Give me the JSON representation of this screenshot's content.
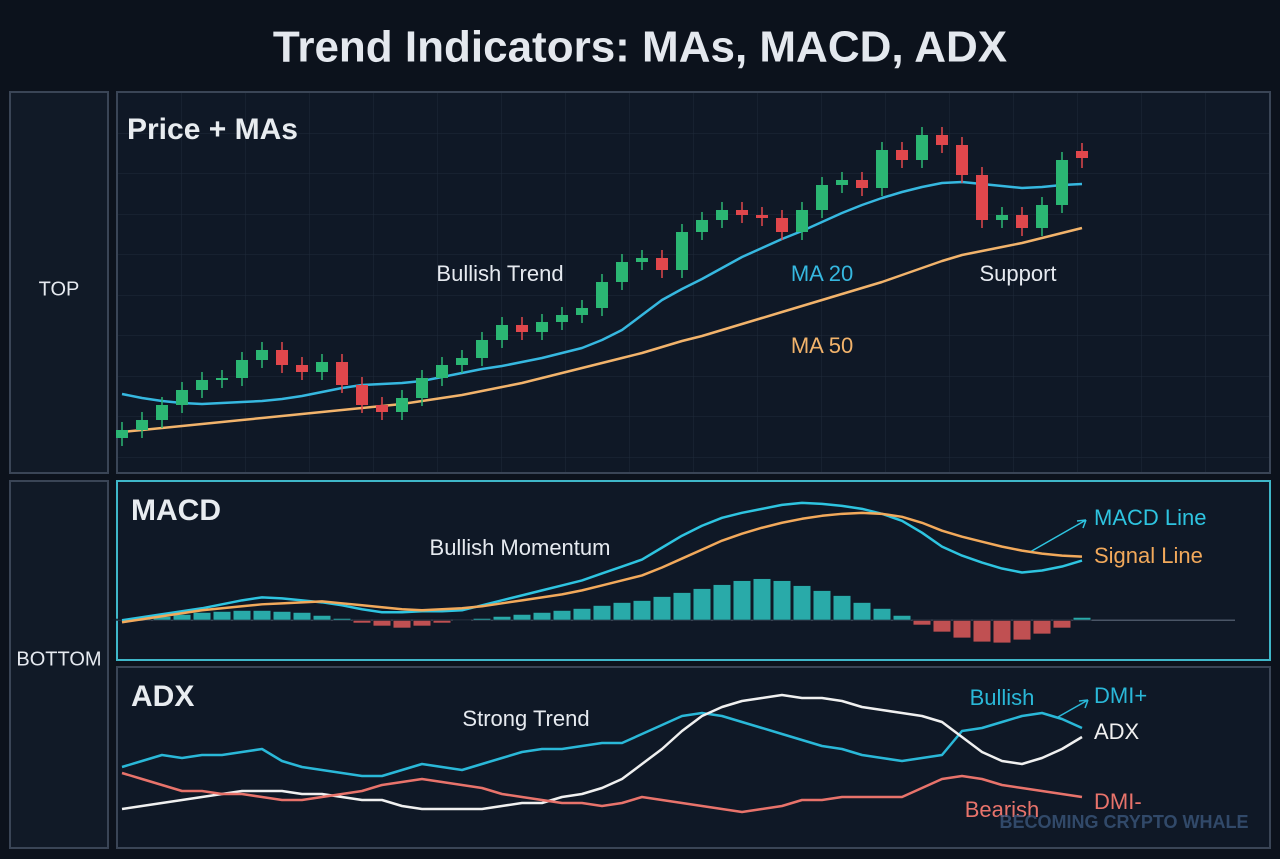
{
  "title": "Trend Indicators: MAs, MACD, ADX",
  "labels": {
    "top": "TOP",
    "bottom": "BOTTOM"
  },
  "watermark": "BECOMING CRYPTO WHALE",
  "chart_data": [
    {
      "type": "candlestick",
      "title": "Price + MAs",
      "ylim": [
        0,
        381
      ],
      "grid": true,
      "up_color": "#2bb673",
      "down_color": "#e0474c",
      "open": [
        35,
        43,
        53,
        68,
        83,
        93,
        95,
        113,
        123,
        108,
        101,
        111,
        88,
        68,
        61,
        75,
        95,
        108,
        115,
        133,
        148,
        141,
        151,
        158,
        165,
        191,
        211,
        215,
        203,
        241,
        253,
        263,
        258,
        255,
        241,
        263,
        288,
        293,
        285,
        323,
        313,
        338,
        328,
        298,
        253,
        258,
        245,
        268,
        322
      ],
      "close": [
        43,
        53,
        68,
        83,
        93,
        95,
        113,
        123,
        108,
        101,
        111,
        88,
        68,
        61,
        75,
        95,
        108,
        115,
        133,
        148,
        141,
        151,
        158,
        165,
        191,
        211,
        215,
        203,
        241,
        253,
        263,
        258,
        255,
        241,
        263,
        288,
        293,
        285,
        323,
        313,
        338,
        328,
        298,
        253,
        258,
        245,
        268,
        313,
        315
      ],
      "high": [
        51,
        61,
        76,
        91,
        101,
        103,
        121,
        131,
        131,
        116,
        119,
        119,
        96,
        76,
        83,
        103,
        116,
        123,
        141,
        156,
        156,
        159,
        166,
        173,
        199,
        219,
        223,
        223,
        249,
        261,
        271,
        271,
        266,
        263,
        271,
        296,
        301,
        301,
        331,
        331,
        346,
        346,
        336,
        306,
        266,
        266,
        276,
        321,
        330
      ],
      "low": [
        27,
        35,
        45,
        60,
        75,
        85,
        87,
        105,
        100,
        93,
        93,
        80,
        60,
        53,
        53,
        67,
        87,
        100,
        107,
        125,
        133,
        133,
        143,
        150,
        157,
        183,
        203,
        195,
        195,
        233,
        245,
        250,
        247,
        233,
        233,
        255,
        280,
        277,
        277,
        305,
        305,
        320,
        290,
        245,
        245,
        237,
        237,
        260,
        305
      ],
      "series": [
        {
          "name": "MA 20",
          "color": "#36b8e0",
          "values": [
            79,
            75,
            72,
            70,
            69,
            70,
            71,
            72,
            74,
            77,
            81,
            85,
            88,
            89,
            90,
            92,
            96,
            100,
            104,
            107,
            111,
            115,
            120,
            125,
            133,
            143,
            158,
            173,
            184,
            194,
            205,
            216,
            225,
            234,
            242,
            251,
            260,
            268,
            275,
            281,
            286,
            290,
            291,
            289,
            287,
            285,
            286,
            288,
            289
          ]
        },
        {
          "name": "MA 50",
          "color": "#f2b36b",
          "values": [
            41,
            43,
            45,
            47,
            49,
            51,
            53,
            55,
            57,
            59,
            61,
            63,
            65,
            67,
            69,
            72,
            75,
            78,
            82,
            86,
            90,
            95,
            100,
            105,
            110,
            115,
            120,
            126,
            132,
            137,
            143,
            149,
            155,
            161,
            167,
            173,
            179,
            185,
            191,
            198,
            205,
            212,
            218,
            222,
            226,
            230,
            235,
            240,
            245
          ]
        }
      ],
      "annotations": [
        "Bullish Trend",
        "Support"
      ]
    },
    {
      "type": "combo",
      "title": "MACD",
      "ylim": [
        -40,
        140
      ],
      "histogram": {
        "positive_color": "#2ec4c0",
        "negative_color": "#e05a5a",
        "values": [
          1,
          2,
          4,
          6,
          8,
          9,
          10,
          10,
          9,
          8,
          5,
          2,
          -3,
          -6,
          -8,
          -6,
          -3,
          -1,
          2,
          4,
          6,
          8,
          10,
          12,
          15,
          18,
          20,
          24,
          28,
          32,
          36,
          40,
          42,
          40,
          35,
          30,
          25,
          18,
          12,
          5,
          -5,
          -12,
          -18,
          -22,
          -23,
          -20,
          -14,
          -8,
          3
        ]
      },
      "series": [
        {
          "name": "MACD Line",
          "color": "#2ec4e0",
          "values": [
            0,
            3,
            6,
            9,
            12,
            16,
            20,
            23,
            22,
            20,
            18,
            15,
            11,
            8,
            8,
            9,
            9,
            10,
            15,
            20,
            25,
            30,
            35,
            40,
            47,
            54,
            61,
            73,
            85,
            95,
            103,
            108,
            112,
            116,
            118,
            117,
            115,
            112,
            107,
            100,
            88,
            74,
            65,
            58,
            52,
            48,
            50,
            54,
            60
          ]
        },
        {
          "name": "Signal Line",
          "color": "#f2a95b",
          "values": [
            -2,
            1,
            4,
            7,
            10,
            12,
            14,
            16,
            17,
            18,
            19,
            17,
            15,
            13,
            11,
            10,
            11,
            12,
            14,
            17,
            20,
            23,
            26,
            30,
            35,
            40,
            45,
            53,
            62,
            71,
            80,
            87,
            93,
            98,
            102,
            105,
            107,
            108,
            107,
            104,
            98,
            90,
            84,
            79,
            74,
            70,
            67,
            65,
            64
          ]
        }
      ],
      "annotations": [
        "Bullish Momentum"
      ]
    },
    {
      "type": "line",
      "title": "ADX",
      "ylim": [
        0,
        60
      ],
      "series": [
        {
          "name": "DMI+",
          "color": "#2ab8d8",
          "values": [
            27,
            29,
            31,
            30,
            31,
            31,
            32,
            33,
            29,
            27,
            26,
            25,
            24,
            24,
            26,
            28,
            27,
            26,
            28,
            30,
            32,
            33,
            33,
            34,
            35,
            35,
            38,
            41,
            44,
            45,
            44,
            42,
            40,
            38,
            36,
            34,
            33,
            31,
            30,
            29,
            30,
            31,
            39,
            40,
            42,
            44,
            45,
            43,
            40
          ]
        },
        {
          "name": "ADX",
          "color": "#f0f0f0",
          "values": [
            13,
            14,
            15,
            16,
            17,
            18,
            19,
            19,
            19,
            18,
            18,
            17,
            16,
            16,
            14,
            13,
            13,
            13,
            13,
            14,
            15,
            15,
            17,
            18,
            20,
            23,
            28,
            33,
            39,
            44,
            47,
            49,
            50,
            51,
            50,
            50,
            49,
            47,
            46,
            45,
            44,
            42,
            37,
            32,
            29,
            28,
            30,
            33,
            37
          ]
        },
        {
          "name": "DMI-",
          "color": "#e8736b",
          "values": [
            25,
            23,
            21,
            19,
            19,
            18,
            18,
            17,
            16,
            16,
            17,
            18,
            19,
            21,
            22,
            23,
            22,
            21,
            20,
            18,
            17,
            16,
            15,
            15,
            14,
            15,
            17,
            16,
            15,
            14,
            13,
            12,
            13,
            14,
            16,
            16,
            17,
            17,
            17,
            17,
            20,
            23,
            24,
            23,
            21,
            20,
            19,
            18,
            17
          ]
        }
      ],
      "annotations": [
        "Strong Trend",
        "Bullish",
        "Bearish"
      ]
    }
  ]
}
